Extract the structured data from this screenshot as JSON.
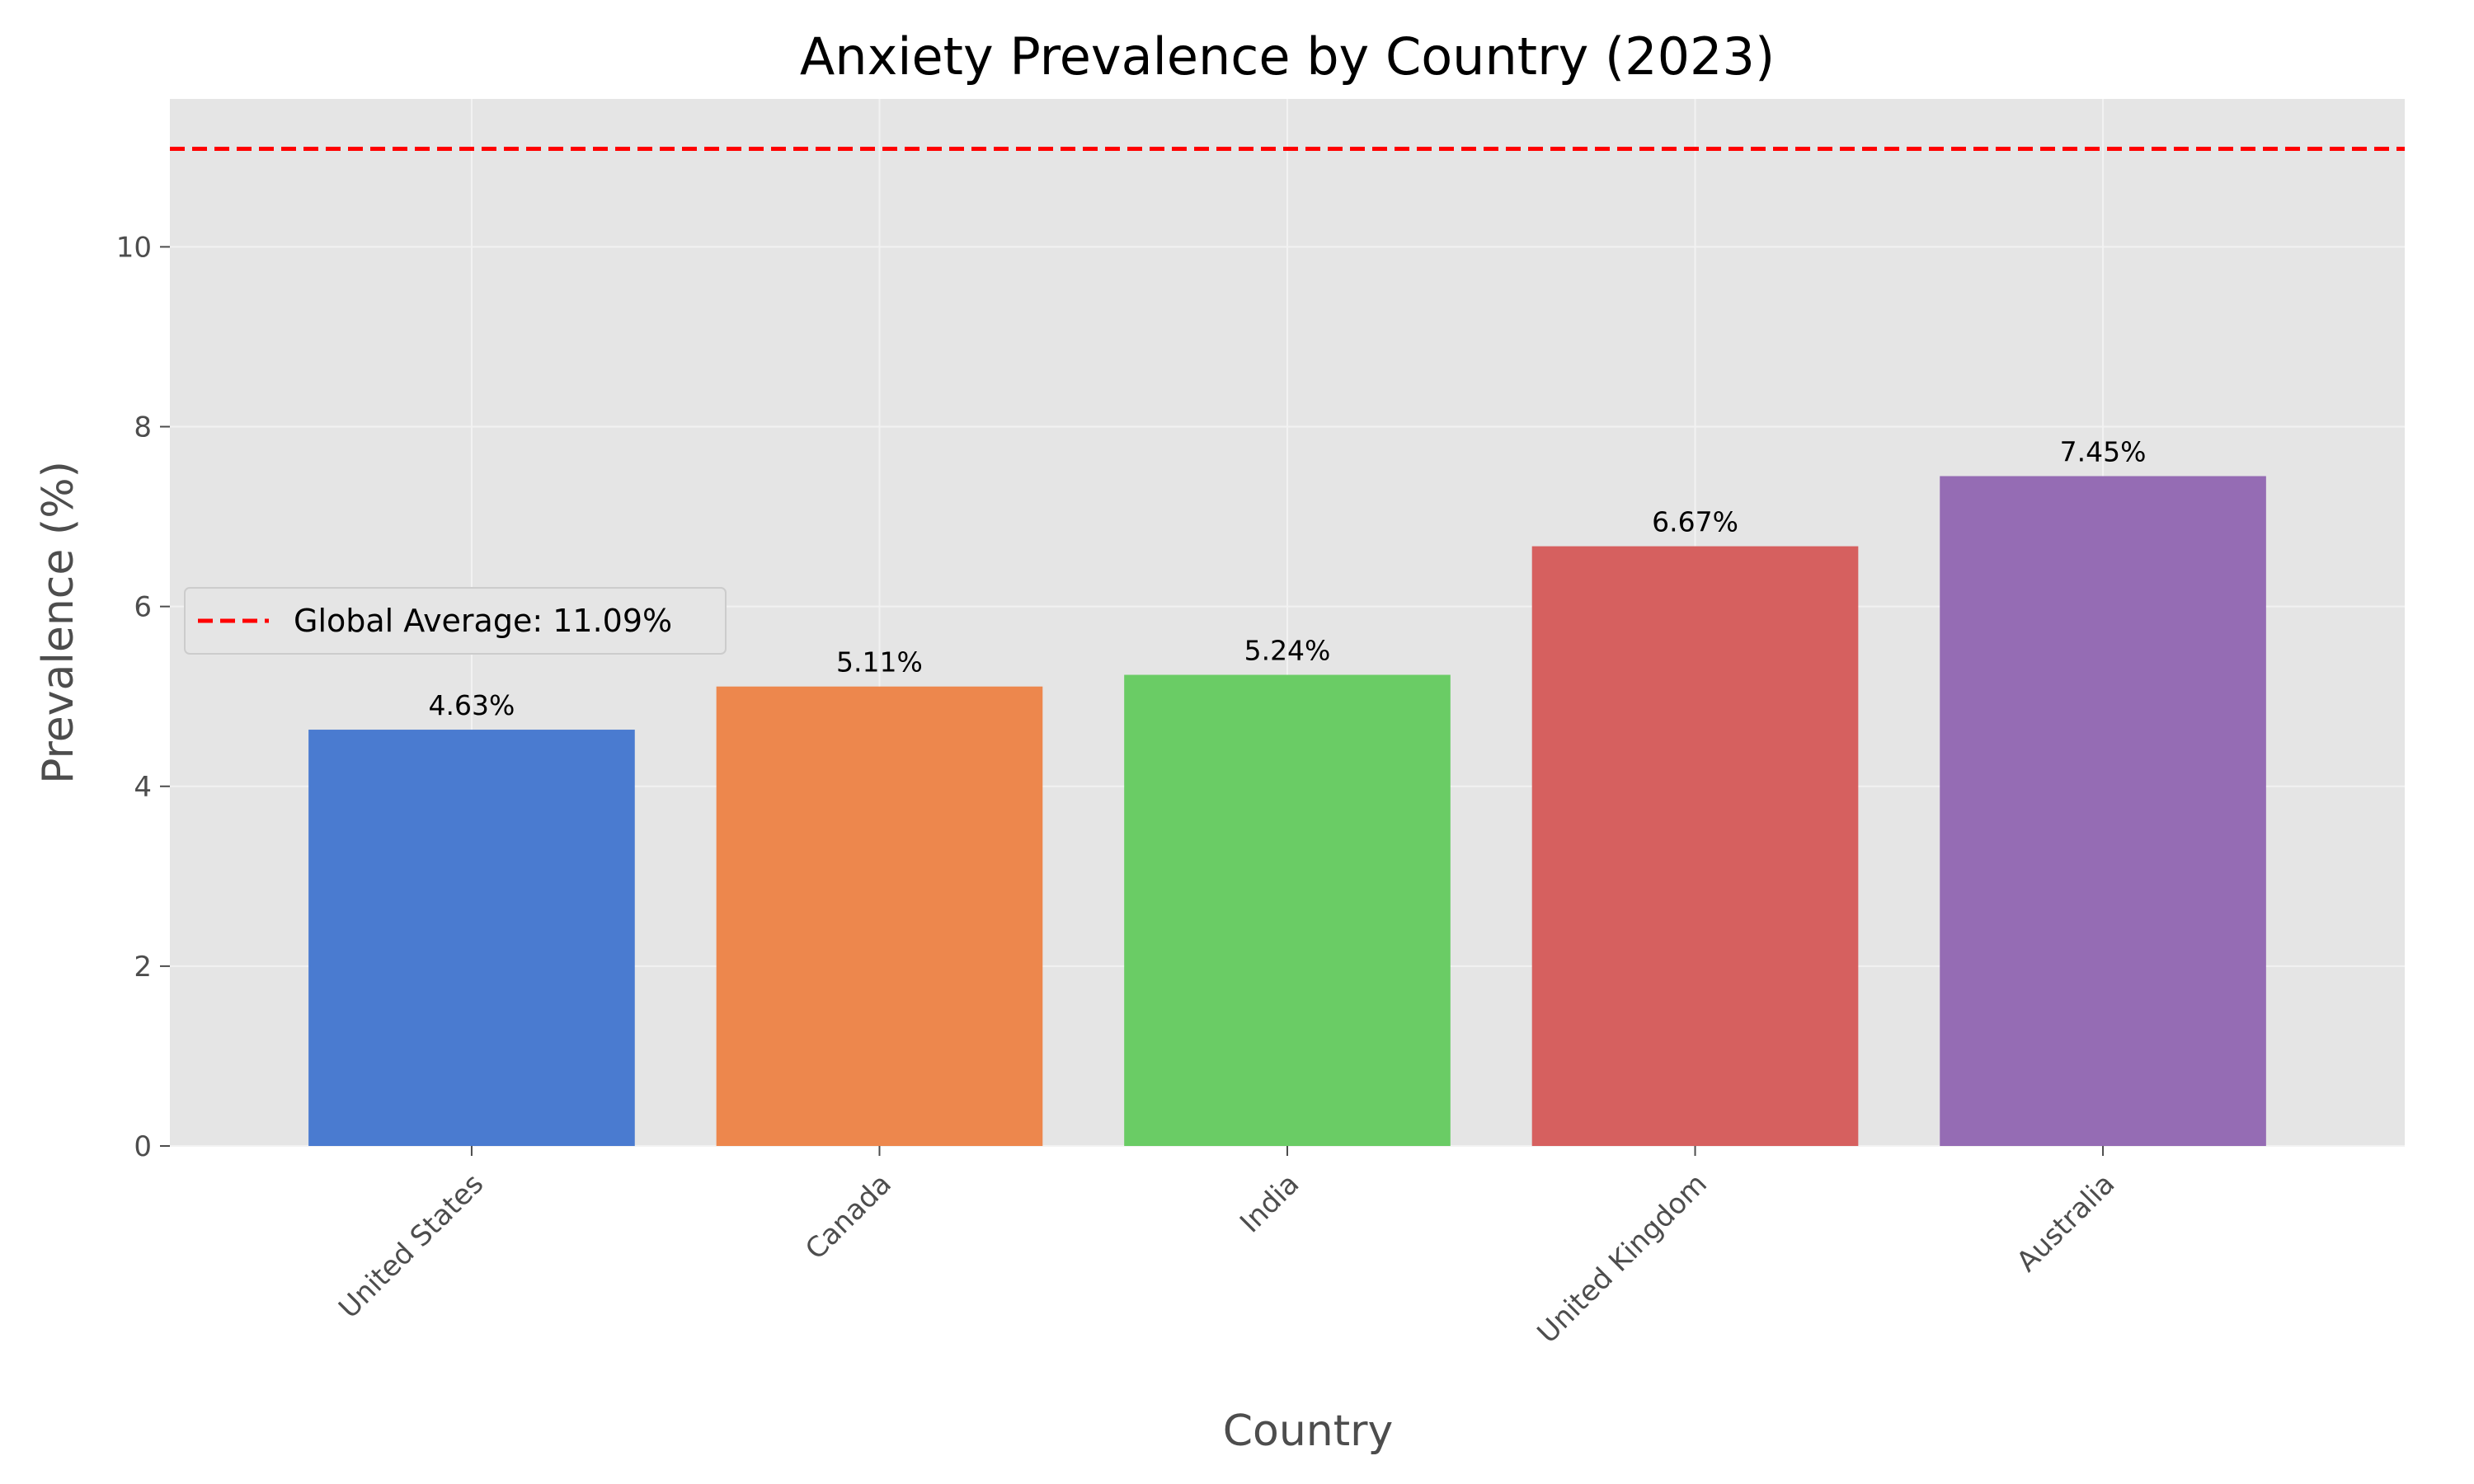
{
  "chart_data": {
    "type": "bar",
    "title": "Anxiety Prevalence by Country (2023)",
    "xlabel": "Country",
    "ylabel": "Prevalence (%)",
    "categories": [
      "United States",
      "Canada",
      "India",
      "United Kingdom",
      "Australia"
    ],
    "values": [
      4.63,
      5.11,
      5.24,
      6.67,
      7.45
    ],
    "value_labels": [
      "4.63%",
      "5.11%",
      "5.24%",
      "6.67%",
      "7.45%"
    ],
    "colors": [
      "#4a7bd0",
      "#ed874d",
      "#6acc65",
      "#d6605f",
      "#956cb4"
    ],
    "ylim": [
      0,
      11.645
    ],
    "yticks": [
      0,
      2,
      4,
      6,
      8,
      10
    ],
    "ytick_labels": [
      "0",
      "2",
      "4",
      "6",
      "8",
      "10"
    ],
    "grid": true,
    "reference_line": {
      "value": 11.09,
      "label": "Global Average: 11.09%",
      "color": "#ff0000",
      "style": "dashed"
    },
    "legend": {
      "placement": "center-left"
    }
  }
}
